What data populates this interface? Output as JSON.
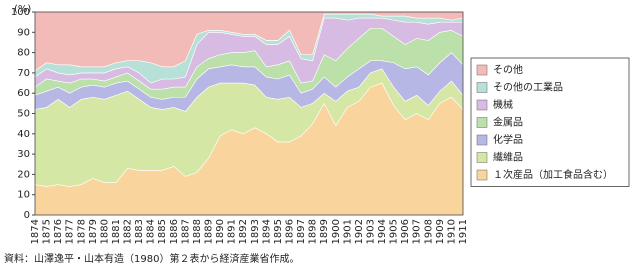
{
  "chart_data": {
    "type": "stacked-area",
    "y_label": "(%)",
    "source": "資料：山澤逸平・山本有造（1980）第２表から経済産業省作成。",
    "categories": [
      "1874",
      "1875",
      "1876",
      "1877",
      "1878",
      "1879",
      "1880",
      "1881",
      "1882",
      "1883",
      "1884",
      "1885",
      "1886",
      "1887",
      "1888",
      "1889",
      "1890",
      "1891",
      "1892",
      "1893",
      "1894",
      "1895",
      "1896",
      "1897",
      "1898",
      "1899",
      "1900",
      "1901",
      "1902",
      "1903",
      "1904",
      "1905",
      "1906",
      "1907",
      "1908",
      "1909",
      "1910",
      "1911"
    ],
    "series": [
      {
        "name": "１次産品（加工食品含む）",
        "color": "#f9d49c",
        "values": [
          15,
          14,
          15,
          14,
          15,
          18,
          16,
          16,
          23,
          22,
          22,
          22,
          24,
          19,
          21,
          28,
          39,
          42,
          40,
          43,
          40,
          36,
          36,
          39,
          45,
          55,
          44,
          53,
          56,
          63,
          65,
          54,
          47,
          50,
          47,
          55,
          58,
          52
        ]
      },
      {
        "name": "繊維品",
        "color": "#d4e7a4",
        "values": [
          37,
          39,
          42,
          39,
          42,
          40,
          41,
          43,
          38,
          35,
          31,
          30,
          29,
          32,
          37,
          35,
          26,
          23,
          25,
          21,
          18,
          21,
          22,
          14,
          10,
          5,
          12,
          8,
          7,
          7,
          7,
          9,
          9,
          9,
          7,
          6,
          8,
          7
        ]
      },
      {
        "name": "化学品",
        "color": "#b7b7e6",
        "values": [
          7,
          8,
          6,
          7,
          6,
          6,
          6,
          6,
          5,
          5,
          5,
          5,
          5,
          7,
          9,
          9,
          8,
          9,
          8,
          9,
          10,
          10,
          11,
          7,
          7,
          8,
          7,
          7,
          9,
          6,
          4,
          12,
          16,
          14,
          15,
          14,
          14,
          15
        ]
      },
      {
        "name": "金属品",
        "color": "#bbe0aa",
        "values": [
          4,
          6,
          3,
          5,
          4,
          3,
          3,
          3,
          4,
          4,
          4,
          5,
          5,
          5,
          6,
          5,
          6,
          6,
          7,
          8,
          5,
          7,
          7,
          5,
          4,
          11,
          13,
          14,
          15,
          16,
          16,
          13,
          12,
          14,
          17,
          15,
          11,
          14
        ]
      },
      {
        "name": "機械",
        "color": "#d7bbe2",
        "values": [
          5,
          5,
          4,
          4,
          3,
          3,
          4,
          4,
          3,
          4,
          3,
          5,
          4,
          5,
          11,
          13,
          11,
          9,
          8,
          7,
          11,
          10,
          12,
          12,
          10,
          18,
          21,
          14,
          10,
          5,
          5,
          8,
          11,
          8,
          8,
          5,
          4,
          7
        ]
      },
      {
        "name": "その他の工業品",
        "color": "#b7e0d7",
        "values": [
          3,
          3,
          4,
          5,
          3,
          3,
          3,
          3,
          3,
          6,
          10,
          6,
          6,
          8,
          5,
          1,
          1,
          1,
          1,
          1,
          2,
          2,
          3,
          2,
          3,
          2,
          2,
          3,
          2,
          2,
          1,
          2,
          3,
          2,
          3,
          2,
          1,
          2
        ]
      },
      {
        "name": "その他",
        "color": "#f3bbb8",
        "values": [
          29,
          25,
          26,
          26,
          27,
          27,
          27,
          25,
          24,
          24,
          25,
          27,
          27,
          24,
          11,
          9,
          9,
          10,
          11,
          11,
          14,
          14,
          9,
          21,
          21,
          1,
          1,
          1,
          1,
          1,
          2,
          2,
          2,
          3,
          3,
          3,
          4,
          3
        ]
      }
    ],
    "ylim": [
      0,
      100
    ],
    "yticks": [
      0,
      10,
      20,
      30,
      40,
      50,
      60,
      70,
      80,
      90,
      100
    ],
    "legend": "right"
  }
}
